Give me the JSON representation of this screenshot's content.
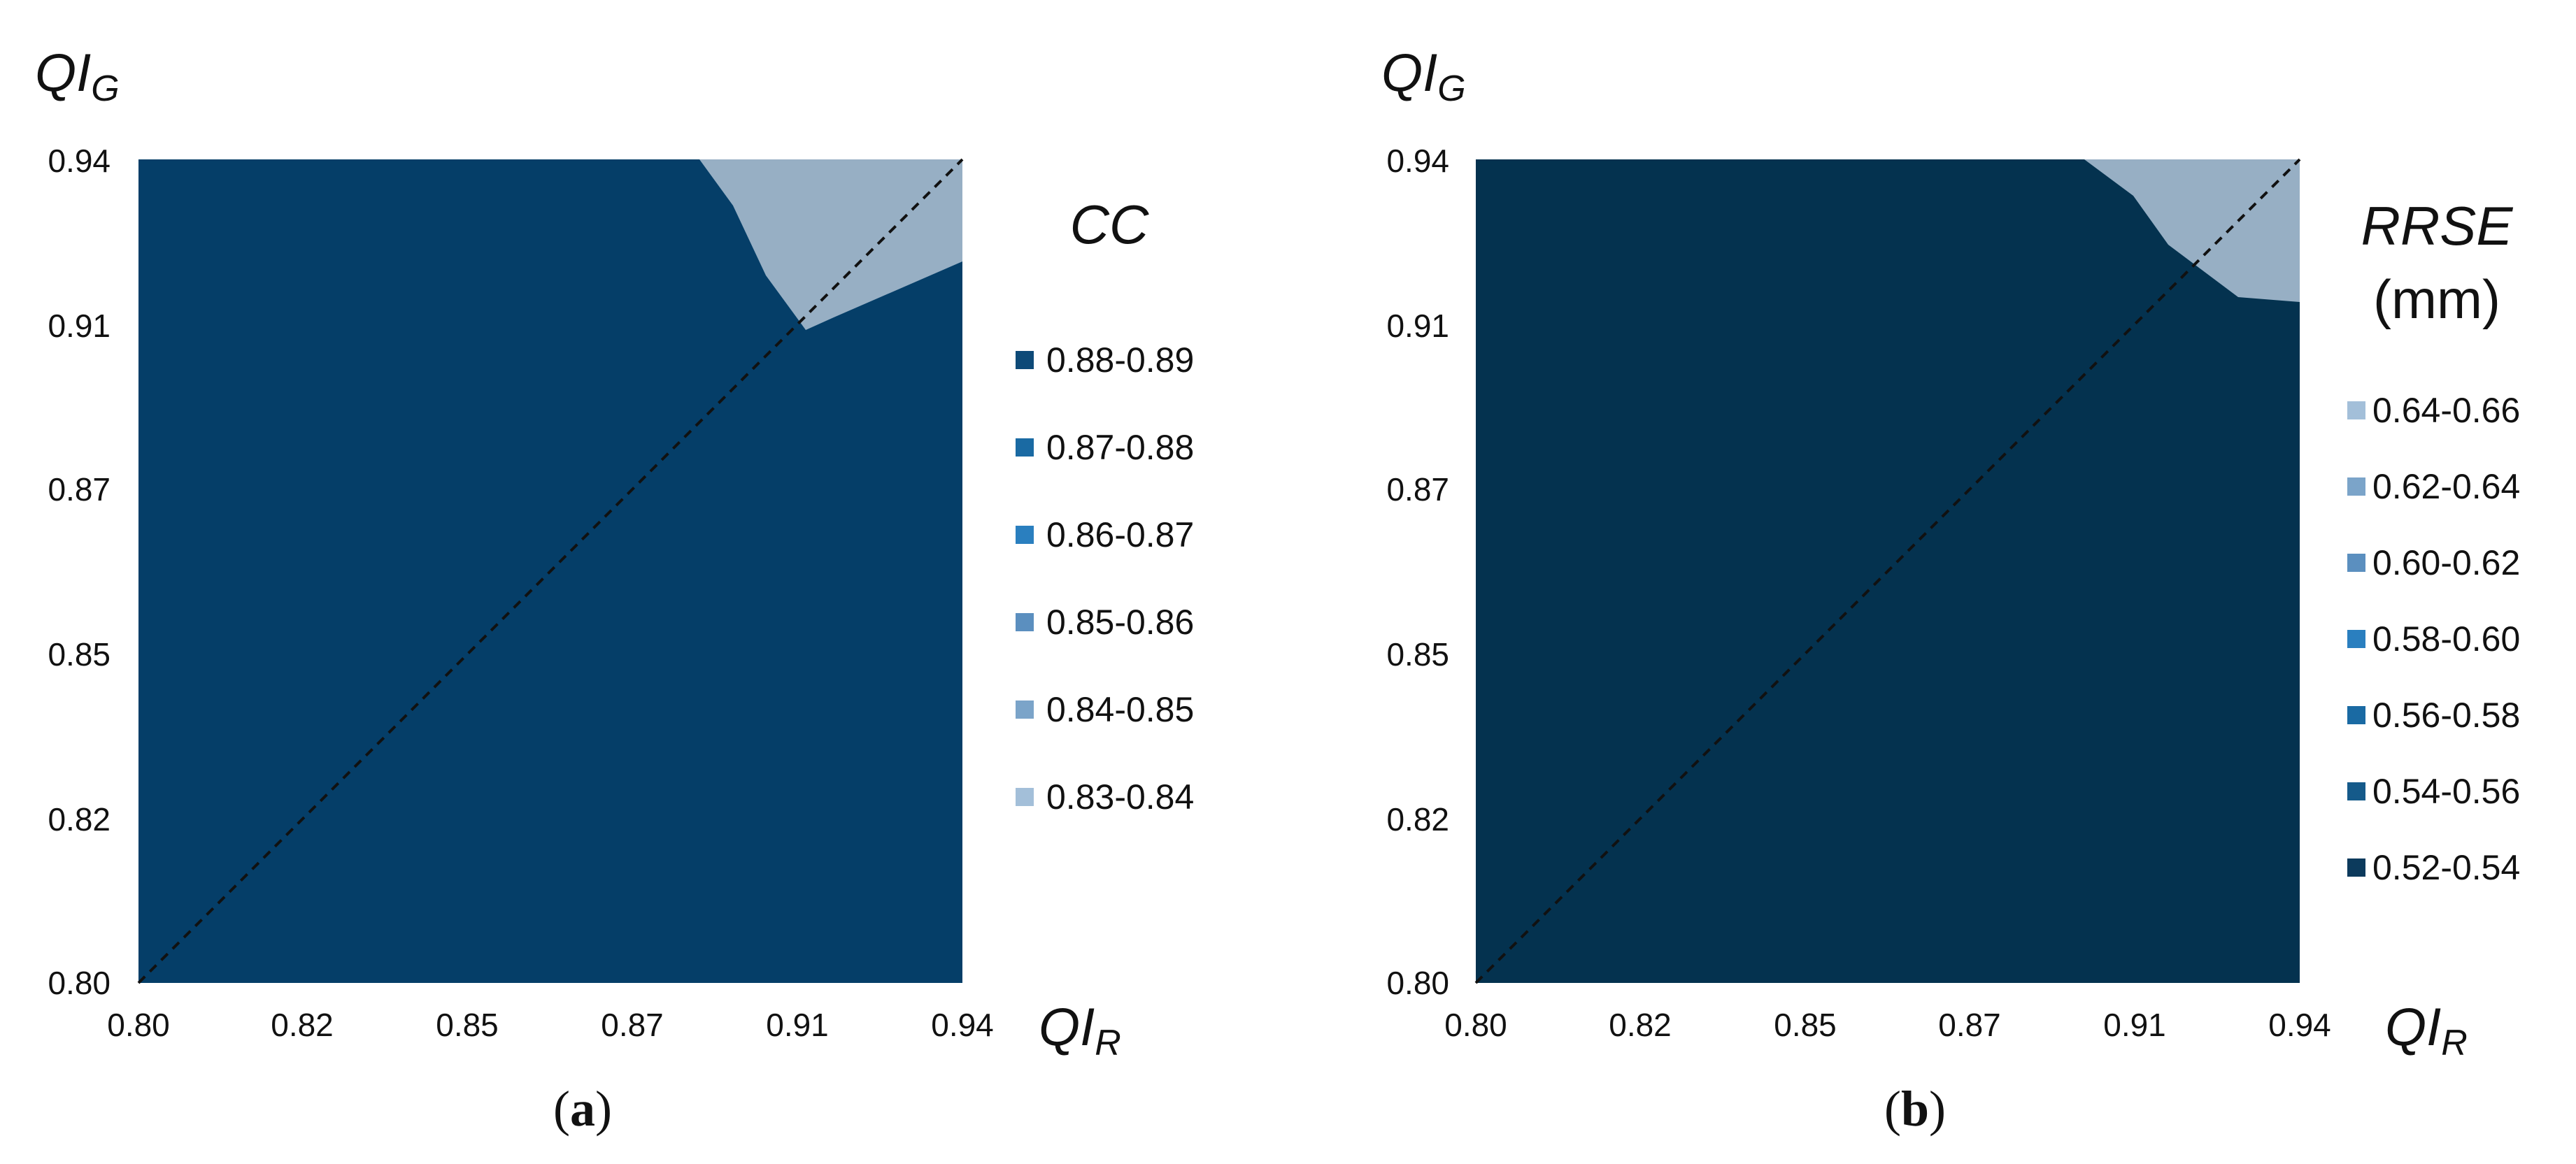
{
  "chart_data": [
    {
      "type": "heatmap",
      "subtype": "contour",
      "panel_label": "a",
      "x_title_main": "QI",
      "x_title_sub": "R",
      "y_title_main": "QI",
      "y_title_sub": "G",
      "x_ticks": [
        "0.80",
        "0.82",
        "0.85",
        "0.87",
        "0.91",
        "0.94"
      ],
      "y_ticks": [
        "0.80",
        "0.82",
        "0.85",
        "0.87",
        "0.91",
        "0.94"
      ],
      "legend_title": "CC",
      "legend_subtitle": "",
      "legend": [
        {
          "label": "0.88-0.89",
          "color": "#0e4a78"
        },
        {
          "label": "0.87-0.88",
          "color": "#1a6aa3"
        },
        {
          "label": "0.86-0.87",
          "color": "#2a7fbf"
        },
        {
          "label": "0.85-0.86",
          "color": "#5b8fbf"
        },
        {
          "label": "0.84-0.85",
          "color": "#7ba4c9"
        },
        {
          "label": "0.83-0.84",
          "color": "#a3bfd9"
        }
      ],
      "bands": [
        {
          "range": "0.83-0.84",
          "color": "#97afc4"
        },
        {
          "range": "0.84-0.85",
          "color": "#7a9dbd"
        },
        {
          "range": "0.85-0.86",
          "color": "#5584b0"
        },
        {
          "range": "0.86-0.87",
          "color": "#1f68a0"
        },
        {
          "range": "0.87-0.88",
          "color": "#0f5488"
        },
        {
          "range": "0.88-0.89",
          "color": "#053e68"
        }
      ],
      "diagonal": "y = x (dashed)"
    },
    {
      "type": "heatmap",
      "subtype": "contour",
      "panel_label": "b",
      "x_title_main": "QI",
      "x_title_sub": "R",
      "y_title_main": "QI",
      "y_title_sub": "G",
      "x_ticks": [
        "0.80",
        "0.82",
        "0.85",
        "0.87",
        "0.91",
        "0.94"
      ],
      "y_ticks": [
        "0.80",
        "0.82",
        "0.85",
        "0.87",
        "0.91",
        "0.94"
      ],
      "legend_title": "RRSE",
      "legend_subtitle": "(mm)",
      "legend": [
        {
          "label": "0.64-0.66",
          "color": "#a3bfd9"
        },
        {
          "label": "0.62-0.64",
          "color": "#7ba4c9"
        },
        {
          "label": "0.60-0.62",
          "color": "#5b8fbf"
        },
        {
          "label": "0.58-0.60",
          "color": "#2a7fbf"
        },
        {
          "label": "0.56-0.58",
          "color": "#1a6aa3"
        },
        {
          "label": "0.54-0.56",
          "color": "#155a8a"
        },
        {
          "label": "0.52-0.54",
          "color": "#0c3a5c"
        }
      ],
      "bands": [
        {
          "range": "0.64-0.66",
          "color": "#97afc4"
        },
        {
          "range": "0.62-0.64",
          "color": "#789cbd"
        },
        {
          "range": "0.60-0.62",
          "color": "#4f82af"
        },
        {
          "range": "0.58-0.60",
          "color": "#1f68a0"
        },
        {
          "range": "0.56-0.58",
          "color": "#135a90"
        },
        {
          "range": "0.54-0.56",
          "color": "#0a4470"
        },
        {
          "range": "0.52-0.54",
          "color": "#04324f"
        }
      ],
      "diagonal": "y = x (dashed)"
    }
  ]
}
